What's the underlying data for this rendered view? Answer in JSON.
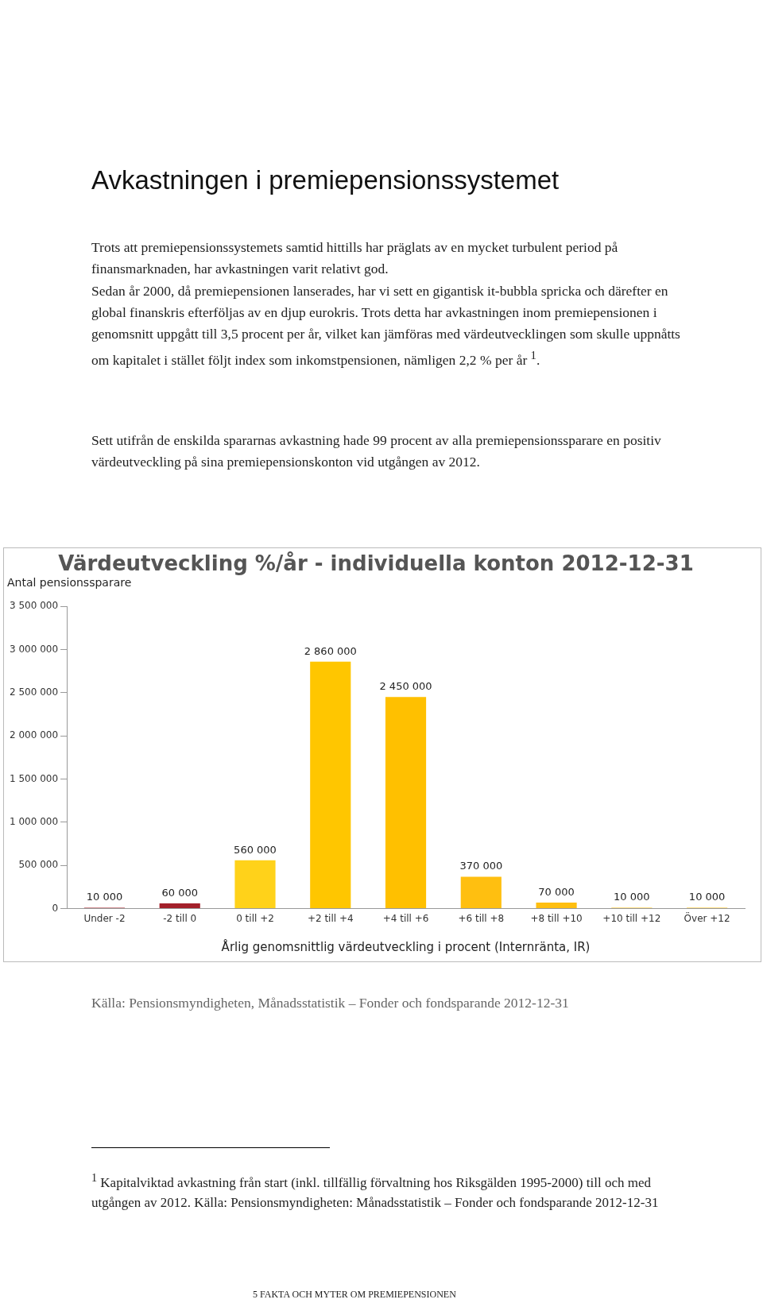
{
  "chart_data": {
    "type": "bar",
    "title": "Värdeutveckling %/år - individuella konton 2012-12-31",
    "ylabel": "Antal pensionssparare",
    "xlabel": "Årlig genomsnittlig värdeutveckling i procent (Internränta, IR)",
    "categories": [
      "Under -2",
      "-2 till 0",
      "0 till +2",
      "+2 till +4",
      "+4 till +6",
      "+6 till +8",
      "+8 till +10",
      "+10 till +12",
      "Över +12"
    ],
    "values": [
      10000,
      60000,
      560000,
      2860000,
      2450000,
      370000,
      70000,
      10000,
      10000
    ],
    "colors": [
      "#a3202a",
      "#a3202a",
      "#ffd21a",
      "#ffc600",
      "#ffc000",
      "#ffbf10",
      "#ffbf10",
      "#ffbf10",
      "#ffbf10"
    ],
    "value_labels": [
      "10 000",
      "60 000",
      "560 000",
      "2 860 000",
      "2 450 000",
      "370 000",
      "70 000",
      "10 000",
      "10 000"
    ],
    "ylim": [
      0,
      3500000
    ],
    "yticks": [
      {
        "value": 0,
        "label": "0"
      },
      {
        "value": 500000,
        "label": "500 000"
      },
      {
        "value": 1000000,
        "label": "1 000 000"
      },
      {
        "value": 1500000,
        "label": "1 500 000"
      },
      {
        "value": 2000000,
        "label": "2 000 000"
      },
      {
        "value": 2500000,
        "label": "2 500 000"
      },
      {
        "value": 3000000,
        "label": "3 000 000"
      },
      {
        "value": 3500000,
        "label": "3 500 000"
      }
    ],
    "grid": false,
    "legend": false,
    "annotations": [
      "Avkastningen i premiepensionssystemet",
      "Trots att premiepensionssystemets samtid hittills har präglats av en mycket turbulent period på finansmarknaden, har avkastningen varit relativt god.",
      "Sedan år 2000, då premiepensionen lanserades, har vi sett en gigantisk it-bubbla spricka och därefter en global finanskris efterföljas av en djup eurokris. Trots detta har avkastningen inom premiepensionen i genomsnitt uppgått till 3,5 procent per år, vilket kan jämföras med värdeutvecklingen som skulle uppnåtts om kapitalet i stället följt index som inkomstpensionen, nämligen 2,2 % per år $^{1}$.",
      "Sett utifrån de enskilda spararnas avkastning hade 99 procent av alla premiepensionssparare en positiv värdeutveckling på sina premiepensionskonton vid utgången av 2012.",
      "Källa: Pensionsmyndigheten, Månadsstatistik – Fonder och fondsparande 2012-12-31",
      "$^{1}$ Kapitalviktad avkastning från start (inkl. tillfällig förvaltning hos Riksgälden 1995-2000) till och med utgången av 2012. Källa: Pensionsmyndigheten: Månadsstatistik – Fonder och fondsparande 2012-12-31",
      "5 FAKTA OCH MYTER OM PREMIEPENSIONEN"
    ]
  }
}
